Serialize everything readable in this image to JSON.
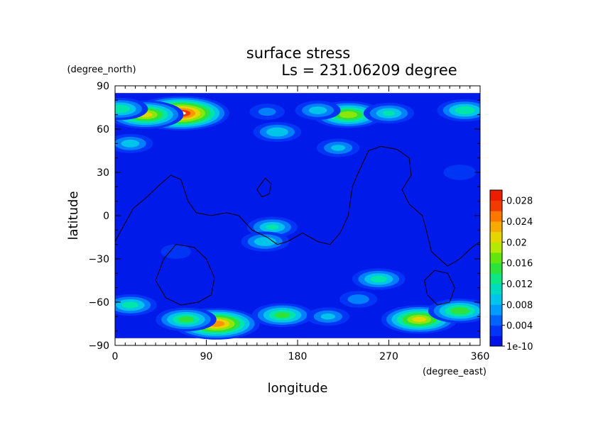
{
  "chart_data": {
    "type": "heatmap",
    "title": "surface stress",
    "subtitle": "Ls = 231.06209 degree",
    "xlabel": "longitude",
    "ylabel": "latitude",
    "x_unit": "(degree_east)",
    "y_unit": "(degree_north)",
    "xlim": [
      0,
      360
    ],
    "ylim": [
      -90,
      90
    ],
    "x_ticks": [
      0,
      90,
      180,
      270,
      360
    ],
    "y_ticks": [
      -90,
      -60,
      -30,
      0,
      30,
      60,
      90
    ],
    "colorbar": {
      "range": [
        0,
        0.03
      ],
      "tick_labels": [
        "1e-10",
        "0.004",
        "0.008",
        "0.012",
        "0.016",
        "0.02",
        "0.024",
        "0.028"
      ],
      "tick_values": [
        0,
        0.004,
        0.008,
        0.012,
        0.016,
        0.02,
        0.024,
        0.028
      ]
    },
    "field_features": [
      {
        "lon": 65,
        "lat": 71,
        "value": 0.03
      },
      {
        "lon": 30,
        "lat": 70,
        "value": 0.022
      },
      {
        "lon": 5,
        "lat": 74,
        "value": 0.014
      },
      {
        "lon": 15,
        "lat": 50,
        "value": 0.01
      },
      {
        "lon": 150,
        "lat": 72,
        "value": 0.006
      },
      {
        "lon": 160,
        "lat": 58,
        "value": 0.011
      },
      {
        "lon": 230,
        "lat": 70,
        "value": 0.02
      },
      {
        "lon": 200,
        "lat": 73,
        "value": 0.01
      },
      {
        "lon": 270,
        "lat": 71,
        "value": 0.012
      },
      {
        "lon": 345,
        "lat": 73,
        "value": 0.014
      },
      {
        "lon": 220,
        "lat": 47,
        "value": 0.009
      },
      {
        "lon": 155,
        "lat": -8,
        "value": 0.012
      },
      {
        "lon": 148,
        "lat": -18,
        "value": 0.011
      },
      {
        "lon": 260,
        "lat": -44,
        "value": 0.013
      },
      {
        "lon": 240,
        "lat": -58,
        "value": 0.007
      },
      {
        "lon": 15,
        "lat": -62,
        "value": 0.013
      },
      {
        "lon": 100,
        "lat": -75,
        "value": 0.026
      },
      {
        "lon": 70,
        "lat": -72,
        "value": 0.016
      },
      {
        "lon": 165,
        "lat": -69,
        "value": 0.016
      },
      {
        "lon": 210,
        "lat": -70,
        "value": 0.009
      },
      {
        "lon": 300,
        "lat": -72,
        "value": 0.022
      },
      {
        "lon": 340,
        "lat": -66,
        "value": 0.017
      },
      {
        "lon": 340,
        "lat": 30,
        "value": 0.005
      },
      {
        "lon": 60,
        "lat": -25,
        "value": 0.004
      }
    ],
    "overlay_contours": [
      [
        [
          0,
          -18
        ],
        [
          10,
          -5
        ],
        [
          18,
          5
        ],
        [
          30,
          12
        ],
        [
          45,
          22
        ],
        [
          55,
          28
        ],
        [
          65,
          25
        ],
        [
          72,
          10
        ],
        [
          80,
          2
        ],
        [
          95,
          0
        ],
        [
          110,
          2
        ],
        [
          122,
          0
        ],
        [
          135,
          -10
        ],
        [
          150,
          -15
        ],
        [
          160,
          -20
        ],
        [
          170,
          -18
        ],
        [
          185,
          -12
        ],
        [
          200,
          -18
        ],
        [
          212,
          -20
        ],
        [
          222,
          -12
        ],
        [
          230,
          0
        ],
        [
          232,
          10
        ],
        [
          234,
          20
        ],
        [
          240,
          30
        ],
        [
          250,
          45
        ],
        [
          262,
          48
        ],
        [
          278,
          46
        ],
        [
          290,
          40
        ],
        [
          292,
          28
        ],
        [
          283,
          18
        ],
        [
          290,
          8
        ],
        [
          303,
          0
        ],
        [
          307,
          -10
        ],
        [
          312,
          -25
        ],
        [
          328,
          -35
        ],
        [
          340,
          -30
        ],
        [
          352,
          -22
        ],
        [
          360,
          -18
        ]
      ],
      [
        [
          142,
          20
        ],
        [
          148,
          26
        ],
        [
          154,
          22
        ],
        [
          152,
          15
        ],
        [
          145,
          13
        ],
        [
          140,
          18
        ]
      ],
      [
        [
          40,
          -45
        ],
        [
          48,
          -30
        ],
        [
          60,
          -20
        ],
        [
          78,
          -22
        ],
        [
          90,
          -30
        ],
        [
          98,
          -43
        ],
        [
          95,
          -55
        ],
        [
          82,
          -60
        ],
        [
          65,
          -62
        ],
        [
          50,
          -57
        ]
      ],
      [
        [
          305,
          -45
        ],
        [
          315,
          -38
        ],
        [
          328,
          -40
        ],
        [
          335,
          -50
        ],
        [
          330,
          -60
        ],
        [
          318,
          -62
        ],
        [
          308,
          -55
        ]
      ]
    ]
  }
}
